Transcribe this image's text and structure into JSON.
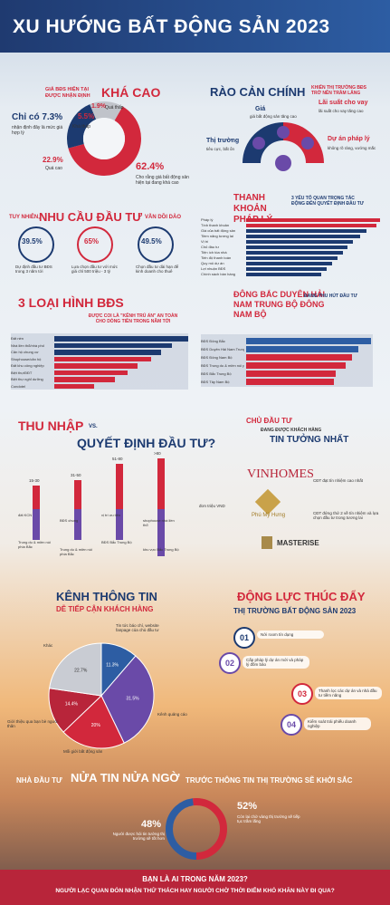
{
  "title": "XU HƯỚNG BẤT ĐỘNG SẢN 2023",
  "s1": {
    "pre": "GIÁ BĐS HIỆN TẠI ĐƯỢC NHẬN ĐỊNH",
    "big": "KHÁ CAO",
    "slices": [
      {
        "pct": "62.4%",
        "label": "Cho rằng giá bất động sản hiện tại đang khá cao"
      },
      {
        "pct": "22.9%",
        "label": "Quá cao"
      },
      {
        "pct": "Chỉ có 7.3%",
        "label": "nhận định đây là mức giá hợp lý"
      },
      {
        "pct": "5.5%",
        "label": "Khá thấp"
      },
      {
        "pct": "1.9%",
        "label": "Quá thấp"
      }
    ]
  },
  "s2": {
    "title": "RÀO CẢN CHÍNH",
    "sub": "KHIẾN THỊ TRƯỜNG BĐS TRỞ NÊN TRẦM LẮNG",
    "items": [
      {
        "name": "Giá",
        "desc": "giá bất động sản tăng cao"
      },
      {
        "name": "Lãi suất cho vay",
        "desc": "lãi suất cho vay tăng cao"
      },
      {
        "name": "Thị trường",
        "desc": "tiêu cực, bất ổn"
      },
      {
        "name": "Dự án pháp lý",
        "desc": "không rõ ràng, vướng mắc"
      }
    ]
  },
  "s3": {
    "pre": "TUY NHIÊN,",
    "big": "NHU CẦU ĐẦU TƯ",
    "post": "VẪN DỒI DÀO",
    "stats": [
      {
        "pct": "39.5%",
        "label": "Dự định đầu tư BĐS trong 3 năm tới"
      },
      {
        "pct": "65%",
        "label": "Lựa chọn đầu tư với mức giá chỉ 500 triệu - 3 tỷ"
      },
      {
        "pct": "49.5%",
        "label": "Chọn đầu tư dài hạn để kinh doanh cho thuê"
      }
    ]
  },
  "s4": {
    "title": "THANH KHOẢN PHÁP LÝ",
    "sub": "3 YẾU TỐ QUAN TRỌNG TÁC ĐỘNG ĐẾN QUYẾT ĐỊNH ĐẦU TƯ",
    "labels": [
      "Pháp lý",
      "Tính thanh khoản",
      "Giá của bất động sản",
      "Tiềm năng tương lai",
      "Vị trí",
      "Chủ đầu tư",
      "Tiện ích tòa nhà",
      "Tiến độ thanh toán",
      "Quy mô dự án",
      "Lợi nhuận BĐS",
      "Chính sách bán hàng"
    ]
  },
  "chart_data": [
    {
      "type": "pie",
      "title": "GIÁ BĐS HIỆN TẠI ĐƯỢC NHẬN ĐỊNH KHÁ CAO",
      "categories": [
        "Khá cao",
        "Quá cao",
        "Hợp lý",
        "Khá thấp",
        "Quá thấp"
      ],
      "values": [
        62.4,
        22.9,
        7.3,
        5.5,
        1.9
      ]
    },
    {
      "type": "bar",
      "title": "THANH KHOẢN PHÁP LÝ",
      "categories": [
        "Pháp lý",
        "Tính thanh khoản",
        "Giá của bất động sản",
        "Tiềm năng tương lai",
        "Vị trí",
        "Chủ đầu tư",
        "Tiện ích tòa nhà",
        "Tiến độ thanh toán",
        "Quy mô dự án",
        "Lợi nhuận BĐS",
        "Chính sách bán hàng"
      ],
      "values": [
        100,
        97,
        90,
        85,
        80,
        76,
        72,
        68,
        64,
        60,
        56
      ]
    },
    {
      "type": "bar",
      "title": "3 LOẠI HÌNH BĐS",
      "categories": [
        "Đất nền",
        "Nhà liền thổ/nhà phố",
        "Căn hộ chung cư",
        "Shophouse/căn hộ",
        "Đất khu công nghiệp",
        "Biệt thự/ĐĐT",
        "Biệt thự nghỉ dưỡng",
        "Condotel"
      ],
      "values": [
        100,
        88,
        80,
        72,
        62,
        55,
        45,
        30
      ]
    },
    {
      "type": "bar",
      "title": "ĐÔNG BẮC DUYÊN HẢI NAM TRUNG BỘ ĐÔNG NAM BỘ",
      "categories": [
        "BĐS Đông Bắc",
        "BĐS Duyên Hải Nam Trung Bộ",
        "BĐS Đông Nam Bộ",
        "BĐS Trung du & miền núi phía Bắc",
        "BĐS Bắc Trung Bộ",
        "BĐS Tây Nam Bộ"
      ],
      "values": [
        100,
        90,
        85,
        80,
        72,
        70
      ]
    },
    {
      "type": "pie",
      "title": "KÊNH THÔNG TIN DỄ TIẾP CẬN KHÁCH HÀNG",
      "categories": [
        "Tin tức báo chí, website fanpage của chủ đầu tư",
        "Kênh quảng cáo",
        "Mối giới bất động sản",
        "Giới thiệu qua bạn bè người thân",
        "Khác"
      ],
      "values": [
        11.3,
        31.5,
        20,
        14.4,
        22.7
      ]
    },
    {
      "type": "pie",
      "title": "NHÀ ĐẦU TƯ NỬA TIN NỬA NGỜ",
      "categories": [
        "Người được hỏi tin tưởng thị trường sẽ tốt hơn",
        "Còn lại chờ vàng thị trường sẽ tiếp tục trầm lắng"
      ],
      "values": [
        48,
        52
      ]
    }
  ],
  "s5": {
    "title": "3 LOẠI HÌNH BĐS",
    "sub": "ĐƯỢC COI LÀ \"KÊNH TRÚ ẨN\" AN TOÀN CHO DÒNG TIỀN TRONG NĂM TỚI",
    "labels": [
      "Đất nền",
      "Nhà liền thổ/nhà phố",
      "Căn hộ chung cư",
      "Shophouse/căn hộ",
      "Đất khu công nghiệp",
      "Biệt thự/ĐĐT",
      "Biệt thự nghỉ dưỡng",
      "Condotel"
    ]
  },
  "s6": {
    "title": "ĐÔNG BẮC DUYÊN HẢI NAM TRUNG BỘ ĐÔNG NAM BỘ",
    "sub": "ĐANG THU HÚT ĐẦU TƯ",
    "labels": [
      "BĐS Đông Bắc",
      "BĐS Duyên Hải Nam Trung Bộ",
      "BĐS Đông Nam Bộ",
      "BĐS Trung du & miền núi phía Bắc",
      "BĐS Bắc Trung Bộ",
      "BĐS Tây Nam Bộ"
    ]
  },
  "s7": {
    "t1": "THU NHẬP",
    "vs": "VS.",
    "t2": "QUYẾT ĐỊNH ĐẦU TƯ?",
    "unit": "đơn triệu VND",
    "cols": [
      {
        "range": "15-30",
        "top": "đất KCN",
        "bottom": "Trung du & miền núi phía Bắc"
      },
      {
        "range": "31-50",
        "top": "BĐS chung",
        "bottom": "Trung du & miền núi phía Bắc"
      },
      {
        "range": "51-80",
        "top": "vị trí ưu tiên",
        "bottom": "BĐS Bắc Trung Bộ"
      },
      {
        "range": ">80",
        "top": "shophouse nhà liền thổ",
        "bottom": "khu vực Bắc Trung Bộ"
      }
    ]
  },
  "s8": {
    "pre": "CHỦ ĐẦU TƯ",
    "mid": "ĐANG ĐƯỢC KHÁCH HÀNG",
    "title": "TIN TƯỞNG NHẤT",
    "brands": [
      {
        "name": "VINHOMES",
        "desc": "CĐT đạt tín nhiệm cao nhất"
      },
      {
        "name": "Phú Mỹ Hưng",
        "desc": "CĐT đứng thứ 2 về tín nhiệm và lựa chọn đầu tư trong tương lai"
      },
      {
        "name": "MASTERISE",
        "desc": ""
      }
    ]
  },
  "s9": {
    "title": "KÊNH THÔNG TIN",
    "sub": "DỄ TIẾP CẬN KHÁCH HÀNG",
    "labels": [
      {
        "text": "Tin tức báo chí, website fanpage của chủ đầu tư",
        "pct": "11.3%"
      },
      {
        "text": "Kênh quảng cáo",
        "pct": "31.5%"
      },
      {
        "text": "Mối giới bất động sản",
        "pct": "20%"
      },
      {
        "text": "Giới thiệu qua bạn bè người thân",
        "pct": "14.4%"
      },
      {
        "text": "Khác",
        "pct": "22.7%"
      }
    ]
  },
  "s10": {
    "title": "ĐỘNG LỰC THÚC ĐẨY",
    "sub": "THỊ TRƯỜNG BẤT ĐỘNG SẢN 2023",
    "items": [
      {
        "n": "01",
        "text": "Nới room tín dụng"
      },
      {
        "n": "02",
        "text": "Cấp pháp lý dự án mới và pháp lý đồm bảo"
      },
      {
        "n": "03",
        "text": "Thanh lọc các dự án và nhà đầu tư tiềm năng"
      },
      {
        "n": "04",
        "text": "Kiểm soát trái phiếu doanh nghiệp"
      }
    ]
  },
  "s11": {
    "pre": "NHÀ ĐẦU TƯ",
    "big": "NỬA TIN NỬA NGỜ",
    "post": "TRƯỚC THÔNG TIN THỊ TRƯỜNG SẼ KHỞI SẮC",
    "left_pct": "48%",
    "left_label": "Người được hỏi tin tưởng thị trường sẽ tốt hơn",
    "right_pct": "52%",
    "right_label": "Còn lại chờ vàng thị trường sẽ tiếp tục trầm lắng"
  },
  "footer": {
    "l1": "BẠN LÀ AI TRONG NĂM 2023?",
    "l2": "NGƯỜI LẠC QUAN ĐÓN NHẬN THỬ THÁCH HAY NGƯỜI CHỜ THỜI ĐIỂM KHÓ KHĂN NÀY ĐI QUA?"
  },
  "colors": {
    "red": "#d2283c",
    "navy": "#1c3a70",
    "purple": "#6a4aa8",
    "gray": "#b0b2b8"
  }
}
